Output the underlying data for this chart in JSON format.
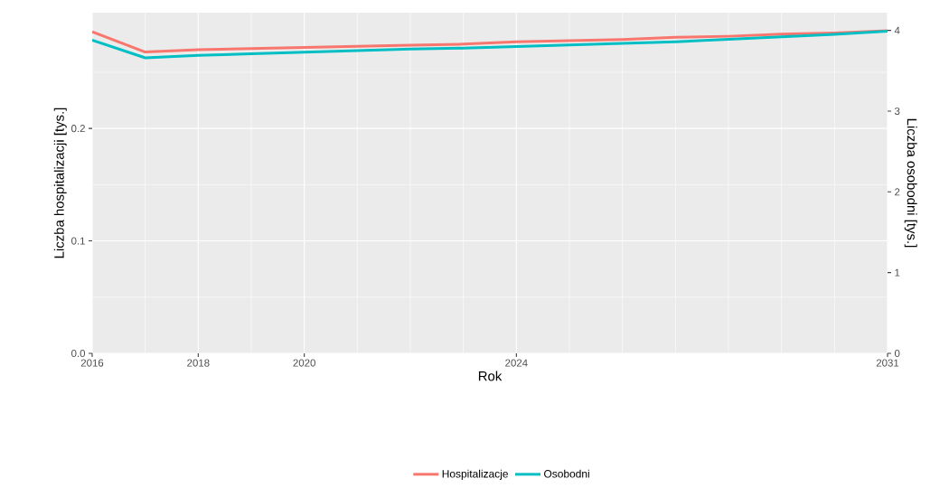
{
  "chart_data": {
    "type": "line",
    "xlabel": "Rok",
    "ylabel": "Liczba hospitalizacji [tys.]",
    "y2label": "Liczba osobodni [tys.]",
    "x": [
      2016,
      2017,
      2018,
      2019,
      2020,
      2021,
      2022,
      2023,
      2024,
      2025,
      2026,
      2027,
      2028,
      2029,
      2030,
      2031
    ],
    "xlim": [
      2016,
      2031
    ],
    "xticks": [
      2016,
      {
        "value": 2017,
        "label": null
      },
      2018,
      {
        "value": 2019,
        "label": null
      },
      2020,
      {
        "value": 2021,
        "label": null
      },
      {
        "value": 2022,
        "label": null
      },
      {
        "value": 2023,
        "label": null
      },
      2024,
      {
        "value": 2025,
        "label": null
      },
      {
        "value": 2026,
        "label": null
      },
      {
        "value": 2027,
        "label": null
      },
      {
        "value": 2028,
        "label": null
      },
      {
        "value": 2029,
        "label": null
      },
      {
        "value": 2030,
        "label": null
      },
      2031
    ],
    "ylim": [
      0,
      0.303
    ],
    "yticks": [
      {
        "value": 0,
        "label": "0.0"
      },
      {
        "value": 0.05,
        "label": null
      },
      0.1,
      {
        "value": 0.15,
        "label": null
      },
      0.2,
      {
        "value": 0.25,
        "label": null
      }
    ],
    "y2lim": [
      0,
      4.22
    ],
    "y2ticks": [
      0,
      1,
      2,
      3,
      4
    ],
    "series": [
      {
        "name": "Hospitalizacje",
        "color": "#f8766d",
        "values": [
          0.286,
          0.268,
          0.27,
          0.271,
          0.272,
          0.273,
          0.274,
          0.275,
          0.277,
          0.278,
          0.279,
          0.281,
          0.282,
          0.284,
          0.285,
          0.287
        ]
      },
      {
        "name": "Osobodni",
        "color": "#00bfc4",
        "axis": "y2",
        "values": [
          3.88,
          3.66,
          3.69,
          3.71,
          3.73,
          3.75,
          3.77,
          3.78,
          3.8,
          3.82,
          3.84,
          3.86,
          3.89,
          3.92,
          3.95,
          3.99
        ]
      }
    ],
    "legend": "bottom",
    "grid": true,
    "marker": "none",
    "line_style": "solid"
  }
}
